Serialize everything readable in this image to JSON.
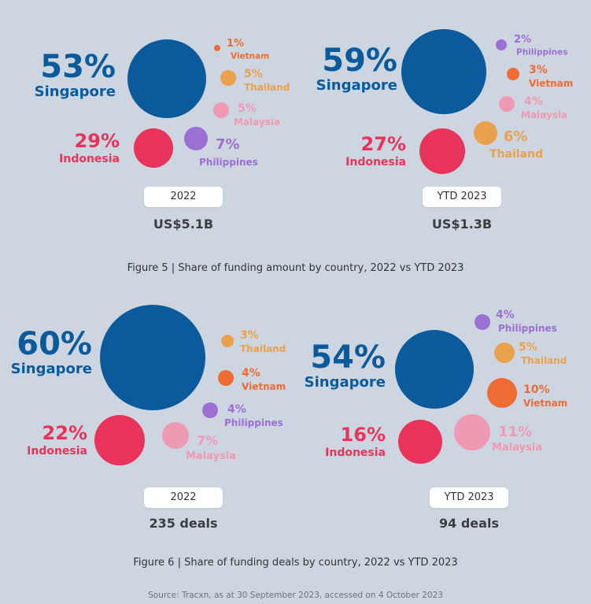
{
  "colors": {
    "Singapore": "#0a5a9c",
    "Indonesia": "#e8345a",
    "Philippines": "#9c6fd3",
    "Vietnam": "#ef6b34",
    "Thailand": "#e9a14d",
    "Malaysia": "#ee9ab2"
  },
  "chart_data": [
    {
      "type": "bubble",
      "figure": "Figure 5",
      "period": "2022",
      "total_label": "US$5.1B",
      "series": [
        {
          "name": "Singapore",
          "value": 53,
          "label": "53%"
        },
        {
          "name": "Indonesia",
          "value": 29,
          "label": "29%"
        },
        {
          "name": "Philippines",
          "value": 7,
          "label": "7%"
        },
        {
          "name": "Vietnam",
          "value": 1,
          "label": "1%"
        },
        {
          "name": "Thailand",
          "value": 5,
          "label": "5%"
        },
        {
          "name": "Malaysia",
          "value": 5,
          "label": "5%"
        }
      ]
    },
    {
      "type": "bubble",
      "figure": "Figure 5",
      "period": "YTD 2023",
      "total_label": "US$1.3B",
      "series": [
        {
          "name": "Singapore",
          "value": 59,
          "label": "59%"
        },
        {
          "name": "Indonesia",
          "value": 27,
          "label": "27%"
        },
        {
          "name": "Philippines",
          "value": 2,
          "label": "2%"
        },
        {
          "name": "Vietnam",
          "value": 3,
          "label": "3%"
        },
        {
          "name": "Malaysia",
          "value": 4,
          "label": "4%"
        },
        {
          "name": "Thailand",
          "value": 6,
          "label": "6%"
        }
      ]
    },
    {
      "type": "bubble",
      "figure": "Figure 6",
      "period": "2022",
      "total_label": "235 deals",
      "series": [
        {
          "name": "Singapore",
          "value": 60,
          "label": "60%"
        },
        {
          "name": "Indonesia",
          "value": 22,
          "label": "22%"
        },
        {
          "name": "Thailand",
          "value": 3,
          "label": "3%"
        },
        {
          "name": "Vietnam",
          "value": 4,
          "label": "4%"
        },
        {
          "name": "Philippines",
          "value": 4,
          "label": "4%"
        },
        {
          "name": "Malaysia",
          "value": 7,
          "label": "7%"
        }
      ]
    },
    {
      "type": "bubble",
      "figure": "Figure 6",
      "period": "YTD 2023",
      "total_label": "94 deals",
      "series": [
        {
          "name": "Singapore",
          "value": 54,
          "label": "54%"
        },
        {
          "name": "Indonesia",
          "value": 16,
          "label": "16%"
        },
        {
          "name": "Philippines",
          "value": 4,
          "label": "4%"
        },
        {
          "name": "Thailand",
          "value": 5,
          "label": "5%"
        },
        {
          "name": "Vietnam",
          "value": 10,
          "label": "10%"
        },
        {
          "name": "Malaysia",
          "value": 11,
          "label": "11%"
        }
      ]
    }
  ],
  "captions": {
    "fig5": "Figure 5 | Share of funding amount by country, 2022 vs YTD 2023",
    "fig6": "Figure 6 | Share of funding deals by country, 2022 vs YTD 2023"
  },
  "source": "Source: Tracxn, as at 30 September 2023, accessed on 4 October 2023"
}
